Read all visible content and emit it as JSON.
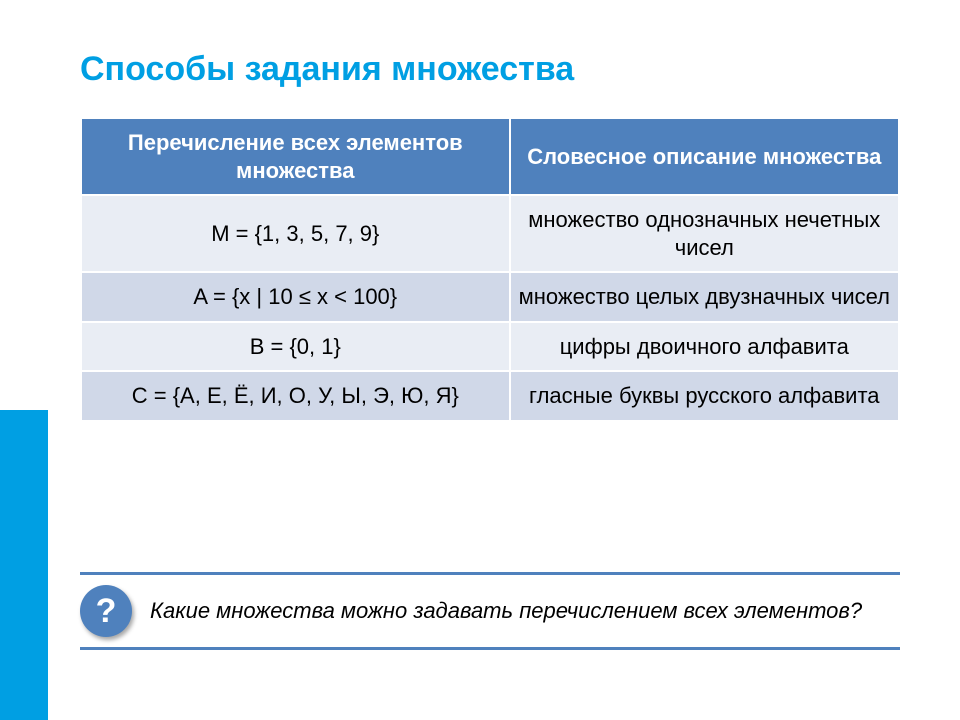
{
  "title": "Способы задания множества",
  "table": {
    "headers": {
      "col1": "Перечисление всех элементов множества",
      "col2": "Словесное описание множества"
    },
    "rows": [
      {
        "left": "M = {1, 3, 5, 7, 9}",
        "right": "множество однозначных нечетных чисел"
      },
      {
        "left": "A = {x | 10 ≤  x < 100}",
        "right": "множество целых двузначных чисел"
      },
      {
        "left": "B = {0, 1}",
        "right": "цифры двоичного алфавита"
      },
      {
        "left": "C = {А, Е, Ё, И, О, У, Ы, Э, Ю, Я}",
        "right": "гласные буквы русского алфавита"
      }
    ]
  },
  "question": {
    "badge": "?",
    "text": "Какие множества можно задавать перечислением всех элементов?"
  },
  "colors": {
    "accent": "#009fe3",
    "table_header_bg": "#4f81bd",
    "row_odd_bg": "#e9edf4",
    "row_even_bg": "#d0d8e8",
    "rule": "#4f81bd"
  }
}
